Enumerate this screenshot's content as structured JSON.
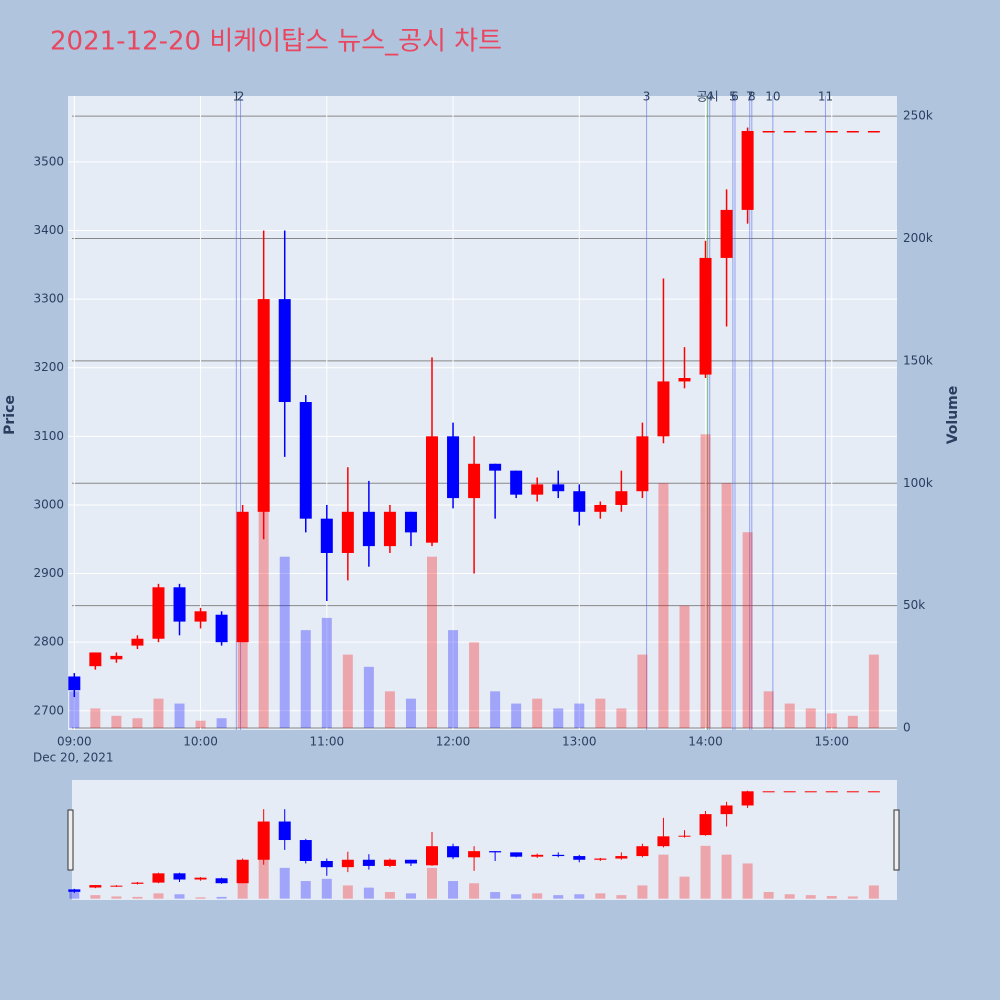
{
  "chart_data": {
    "type": "candlestick",
    "title": "2021-12-20 비케이탑스 뉴스_공시 차트",
    "ylabel": "Price",
    "y2label": "Volume",
    "date_label": "Dec 20, 2021",
    "x": [
      "09:00",
      "09:10",
      "09:20",
      "09:30",
      "09:40",
      "09:50",
      "10:00",
      "10:10",
      "10:20",
      "10:30",
      "10:40",
      "10:50",
      "11:00",
      "11:10",
      "11:20",
      "11:30",
      "11:40",
      "11:50",
      "12:00",
      "12:10",
      "12:20",
      "12:30",
      "12:40",
      "12:50",
      "13:00",
      "13:10",
      "13:20",
      "13:30",
      "13:40",
      "13:50",
      "14:00",
      "14:10",
      "14:20",
      "14:30",
      "14:40",
      "14:50",
      "15:00",
      "15:10",
      "15:20"
    ],
    "open": [
      2750,
      2765,
      2775,
      2795,
      2805,
      2880,
      2830,
      2840,
      2800,
      2990,
      3300,
      3150,
      2980,
      2930,
      2990,
      2940,
      2990,
      2945,
      3100,
      3010,
      3060,
      3050,
      3015,
      3030,
      3020,
      2990,
      3000,
      3020,
      3100,
      3180,
      3190,
      3360,
      3430,
      3545,
      3545,
      3545,
      3545,
      3545,
      3545
    ],
    "high": [
      2755,
      2785,
      2785,
      2810,
      2885,
      2885,
      2850,
      2845,
      3000,
      3400,
      3400,
      3160,
      3000,
      3055,
      3035,
      3000,
      2990,
      3215,
      3120,
      3100,
      3060,
      3050,
      3040,
      3050,
      3030,
      3005,
      3050,
      3120,
      3330,
      3230,
      3385,
      3460,
      3550,
      3545,
      3545,
      3545,
      3545,
      3545,
      3545
    ],
    "low": [
      2720,
      2760,
      2770,
      2790,
      2800,
      2810,
      2820,
      2795,
      2800,
      2950,
      3070,
      2960,
      2860,
      2890,
      2910,
      2930,
      2940,
      2940,
      2995,
      2900,
      2980,
      3010,
      3005,
      3010,
      2970,
      2980,
      2990,
      3010,
      3090,
      3170,
      3185,
      3260,
      3410,
      3545,
      3545,
      3545,
      3545,
      3545,
      3545
    ],
    "close": [
      2730,
      2785,
      2780,
      2805,
      2880,
      2830,
      2845,
      2800,
      2990,
      3300,
      3150,
      2980,
      2930,
      2990,
      2940,
      2990,
      2960,
      3100,
      3010,
      3060,
      3050,
      3015,
      3030,
      3020,
      2990,
      3000,
      3020,
      3100,
      3180,
      3185,
      3360,
      3430,
      3545,
      3545,
      3545,
      3545,
      3545,
      3545,
      3545
    ],
    "volume": [
      15000,
      8000,
      5000,
      4000,
      12000,
      10000,
      3000,
      4000,
      60000,
      120000,
      70000,
      40000,
      45000,
      30000,
      25000,
      15000,
      12000,
      70000,
      40000,
      35000,
      15000,
      10000,
      12000,
      8000,
      10000,
      12000,
      8000,
      30000,
      100000,
      50000,
      120000,
      100000,
      80000,
      15000,
      10000,
      8000,
      6000,
      5000,
      30000
    ],
    "up_color": "#ff0000",
    "down_color": "#0000ff",
    "xlim": [
      "08:57",
      "15:31"
    ],
    "xticks": [
      "09:00",
      "10:00",
      "11:00",
      "12:00",
      "13:00",
      "14:00",
      "15:00"
    ],
    "ylim": [
      2672,
      3596
    ],
    "yticks": [
      2700,
      2800,
      2900,
      3000,
      3100,
      3200,
      3300,
      3400,
      3500
    ],
    "y2lim": [
      -800,
      258200
    ],
    "y2ticks": [
      0,
      {
        "value": 50000,
        "label": "50k"
      },
      {
        "value": 100000,
        "label": "100k"
      },
      {
        "value": 150000,
        "label": "150k"
      },
      {
        "value": 200000,
        "label": "200k"
      },
      {
        "value": 250000,
        "label": "250k"
      }
    ],
    "grid": true,
    "range_slider": true,
    "annotations": [
      {
        "label": "1",
        "x": "10:17",
        "color": "#5b6ee8"
      },
      {
        "label": "2",
        "x": "10:19",
        "color": "#5b6ee8"
      },
      {
        "label": "3",
        "x": "13:32",
        "color": "#5b6ee8"
      },
      {
        "label": "공시",
        "x": "14:01",
        "color": "#2ca02c"
      },
      {
        "label": "4",
        "x": "14:02",
        "color": "#5b6ee8"
      },
      {
        "label": "5",
        "x": "14:13",
        "color": "#5b6ee8"
      },
      {
        "label": "6",
        "x": "14:14",
        "color": "#5b6ee8"
      },
      {
        "label": "7",
        "x": "14:21",
        "color": "#5b6ee8"
      },
      {
        "label": "8",
        "x": "14:22",
        "color": "#5b6ee8"
      },
      {
        "label": "10",
        "x": "14:32",
        "color": "#5b6ee8"
      },
      {
        "label": "11",
        "x": "14:57",
        "color": "#5b6ee8"
      }
    ]
  }
}
